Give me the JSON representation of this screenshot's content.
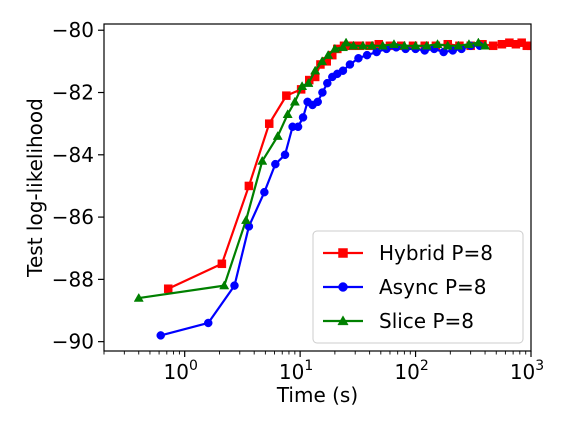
{
  "chart_data": {
    "type": "line",
    "title": "",
    "xlabel": "Time (s)",
    "ylabel": "Test log-likelihood",
    "xscale": "log",
    "xlim": [
      0.2,
      1000
    ],
    "ylim": [
      -90.3,
      -79.8
    ],
    "x_ticks": [
      {
        "value": 1,
        "base": "10",
        "exp": "0"
      },
      {
        "value": 10,
        "base": "10",
        "exp": "1"
      },
      {
        "value": 100,
        "base": "10",
        "exp": "2"
      },
      {
        "value": 1000,
        "base": "10",
        "exp": "3"
      }
    ],
    "y_ticks": [
      -80,
      -82,
      -84,
      -86,
      -88,
      -90
    ],
    "y_tick_labels": [
      "−80",
      "−82",
      "−84",
      "−86",
      "−88",
      "−90"
    ],
    "grid": false,
    "legend_position": "lower-right",
    "series": [
      {
        "name": "Hybrid P=8",
        "color": "#ff0000",
        "marker": "square",
        "points": [
          [
            0.72,
            -88.3
          ],
          [
            2.1,
            -87.5
          ],
          [
            3.6,
            -85.0
          ],
          [
            5.4,
            -83.0
          ],
          [
            7.6,
            -82.1
          ],
          [
            10.2,
            -81.9
          ],
          [
            12.0,
            -81.6
          ],
          [
            13.5,
            -81.5
          ],
          [
            15.0,
            -81.1
          ],
          [
            17.0,
            -81.0
          ],
          [
            19.0,
            -80.8
          ],
          [
            21.0,
            -80.6
          ],
          [
            24.0,
            -80.5
          ],
          [
            28.0,
            -80.5
          ],
          [
            33.0,
            -80.5
          ],
          [
            40.0,
            -80.5
          ],
          [
            48.0,
            -80.45
          ],
          [
            60.0,
            -80.5
          ],
          [
            75.0,
            -80.5
          ],
          [
            95.0,
            -80.5
          ],
          [
            120.0,
            -80.5
          ],
          [
            150.0,
            -80.5
          ],
          [
            190.0,
            -80.45
          ],
          [
            240.0,
            -80.5
          ],
          [
            300.0,
            -80.5
          ],
          [
            380.0,
            -80.45
          ],
          [
            470.0,
            -80.5
          ],
          [
            560.0,
            -80.45
          ],
          [
            650.0,
            -80.4
          ],
          [
            740.0,
            -80.45
          ],
          [
            830.0,
            -80.4
          ],
          [
            920.0,
            -80.5
          ],
          [
            1000.0,
            -80.5
          ]
        ]
      },
      {
        "name": "Async P=8",
        "color": "#0000ff",
        "marker": "circle",
        "points": [
          [
            0.62,
            -89.8
          ],
          [
            1.6,
            -89.4
          ],
          [
            2.7,
            -88.2
          ],
          [
            3.6,
            -86.3
          ],
          [
            4.9,
            -85.2
          ],
          [
            6.1,
            -84.3
          ],
          [
            7.4,
            -84.0
          ],
          [
            8.6,
            -83.1
          ],
          [
            9.6,
            -83.1
          ],
          [
            10.6,
            -82.8
          ],
          [
            11.6,
            -82.3
          ],
          [
            12.8,
            -82.4
          ],
          [
            14.2,
            -82.3
          ],
          [
            15.6,
            -82.0
          ],
          [
            17.2,
            -81.7
          ],
          [
            19.0,
            -81.5
          ],
          [
            21.0,
            -81.4
          ],
          [
            23.5,
            -81.3
          ],
          [
            27.0,
            -81.1
          ],
          [
            32.0,
            -80.9
          ],
          [
            38.0,
            -80.8
          ],
          [
            46.0,
            -80.7
          ],
          [
            56.0,
            -80.6
          ],
          [
            68.0,
            -80.55
          ],
          [
            82.0,
            -80.6
          ],
          [
            100.0,
            -80.6
          ],
          [
            120.0,
            -80.65
          ],
          [
            145.0,
            -80.6
          ],
          [
            175.0,
            -80.7
          ],
          [
            210.0,
            -80.65
          ],
          [
            250.0,
            -80.6
          ],
          [
            300.0,
            -80.5
          ],
          [
            360.0,
            -80.5
          ]
        ]
      },
      {
        "name": "Slice P=8",
        "color": "#008000",
        "marker": "triangle",
        "points": [
          [
            0.4,
            -88.6
          ],
          [
            2.2,
            -88.2
          ],
          [
            3.4,
            -86.1
          ],
          [
            4.7,
            -84.2
          ],
          [
            6.4,
            -83.4
          ],
          [
            7.8,
            -82.7
          ],
          [
            9.0,
            -82.3
          ],
          [
            10.4,
            -81.8
          ],
          [
            11.8,
            -81.7
          ],
          [
            13.5,
            -81.3
          ],
          [
            15.5,
            -81.0
          ],
          [
            17.5,
            -80.8
          ],
          [
            20.0,
            -80.6
          ],
          [
            23.5,
            -80.55
          ],
          [
            25.0,
            -80.4
          ],
          [
            29.0,
            -80.5
          ],
          [
            35.0,
            -80.5
          ],
          [
            42.0,
            -80.5
          ],
          [
            52.0,
            -80.5
          ],
          [
            65.0,
            -80.45
          ],
          [
            80.0,
            -80.5
          ],
          [
            100.0,
            -80.5
          ],
          [
            125.0,
            -80.5
          ],
          [
            155.0,
            -80.45
          ],
          [
            190.0,
            -80.5
          ],
          [
            235.0,
            -80.5
          ],
          [
            290.0,
            -80.45
          ],
          [
            350.0,
            -80.4
          ],
          [
            400.0,
            -80.5
          ]
        ]
      }
    ]
  }
}
